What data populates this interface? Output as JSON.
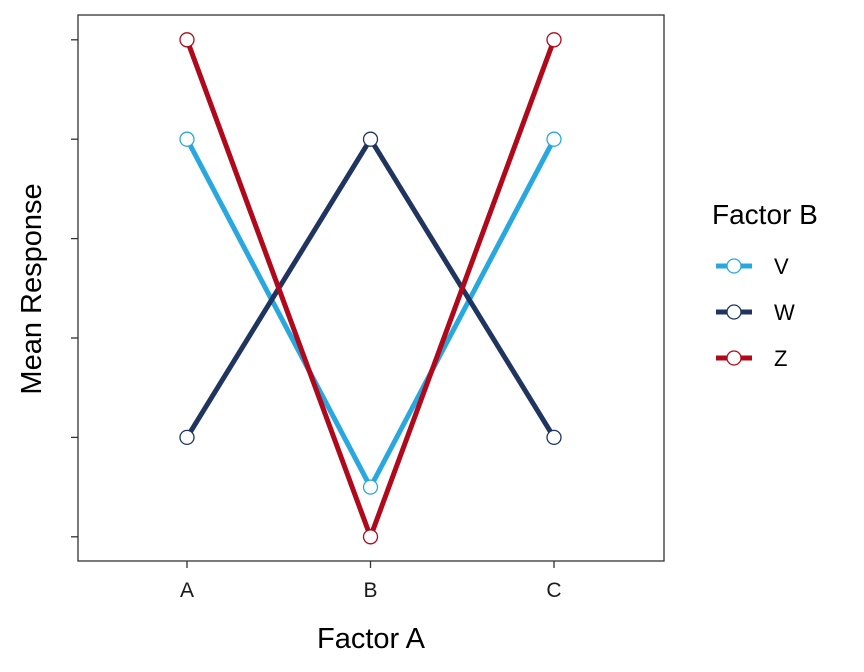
{
  "chart_data": {
    "type": "line",
    "title": "",
    "xlabel": "Factor A",
    "ylabel": "Mean Response",
    "categories": [
      "A",
      "B",
      "C"
    ],
    "ylim": [
      0,
      10
    ],
    "yticks": [
      1,
      3,
      5,
      7,
      9,
      11
    ],
    "y_tick_labels_shown": false,
    "grid": false,
    "legend": {
      "title": "Factor B",
      "placement": "right"
    },
    "series": [
      {
        "name": "V",
        "color": "#29a8e0",
        "values": [
          9,
          2,
          9
        ]
      },
      {
        "name": "W",
        "color": "#1f3560",
        "values": [
          3,
          9,
          3
        ]
      },
      {
        "name": "Z",
        "color": "#b0091b",
        "values": [
          11,
          1,
          11
        ]
      }
    ]
  }
}
